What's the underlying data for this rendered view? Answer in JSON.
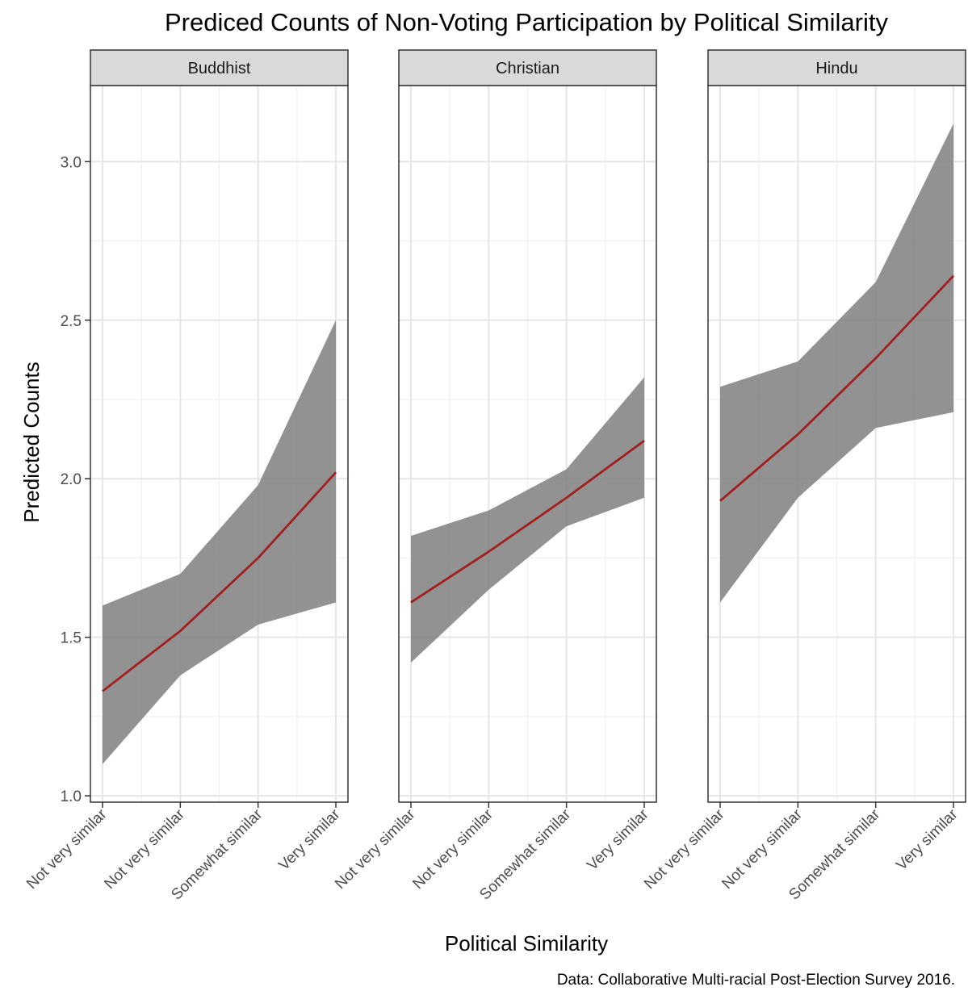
{
  "chart_data": {
    "type": "line",
    "title": "Prediced Counts of Non-Voting Participation by Political Similarity",
    "xlabel": "Political Similarity",
    "ylabel": "Predicted Counts",
    "caption": "Data: Collaborative Multi-racial Post-Election Survey 2016.",
    "categories": [
      "Not very similar",
      "Not very similar",
      "Somewhat similar",
      "Very similar"
    ],
    "ylim": [
      0.98,
      3.24
    ],
    "yticks": [
      1.0,
      1.5,
      2.0,
      2.5,
      3.0
    ],
    "ytick_labels": [
      "1.0",
      "1.5",
      "2.0",
      "2.5",
      "3.0"
    ],
    "grid": true,
    "line_color": "#a31f1f",
    "ribbon_color": "#7f7f7f",
    "strip_color": "#d9d9d9",
    "facets": [
      {
        "label": "Buddhist",
        "values": [
          1.33,
          1.52,
          1.75,
          2.02
        ],
        "lower": [
          1.1,
          1.38,
          1.54,
          1.61
        ],
        "upper": [
          1.6,
          1.7,
          1.98,
          2.5
        ]
      },
      {
        "label": "Christian",
        "values": [
          1.61,
          1.77,
          1.94,
          2.12
        ],
        "lower": [
          1.42,
          1.65,
          1.85,
          1.94
        ],
        "upper": [
          1.82,
          1.9,
          2.03,
          2.32
        ]
      },
      {
        "label": "Hindu",
        "values": [
          1.93,
          2.14,
          2.38,
          2.64
        ],
        "lower": [
          1.61,
          1.94,
          2.16,
          2.21
        ],
        "upper": [
          2.29,
          2.37,
          2.62,
          3.12
        ]
      }
    ]
  }
}
